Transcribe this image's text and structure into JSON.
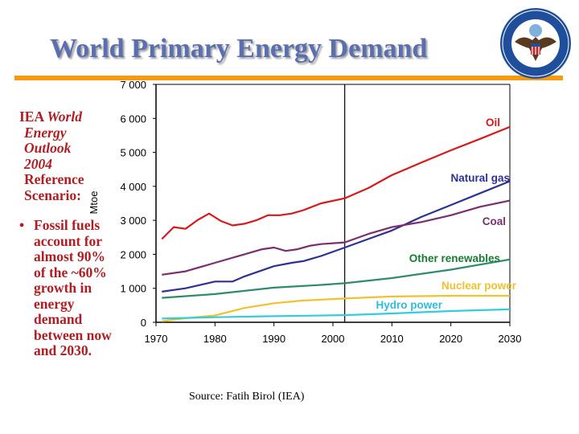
{
  "slide": {
    "title": "World Primary Energy Demand",
    "sidebar": {
      "heading_lines": [
        {
          "plain": "IEA ",
          "italic": "World"
        },
        {
          "italic": "Energy"
        },
        {
          "italic": "Outlook"
        },
        {
          "italic": "2004"
        },
        {
          "plain": "Reference"
        },
        {
          "plain": "Scenario:"
        }
      ],
      "bullet": "Fossil fuels account for almost 90% of the ~60% growth in energy demand between now and 2030."
    },
    "source": "Source:  Fatih Birol (IEA)",
    "seal": {
      "text_top": "U.S. DEPARTMENT OF STATE",
      "text_bottom": "UNITED STATES OF AMERICA"
    },
    "colors": {
      "title": "#5a6fb0",
      "accent_rule": "#f39c12",
      "sidebar_text": "#b01e23"
    }
  },
  "chart_data": {
    "type": "line",
    "title": "",
    "xlabel": "",
    "ylabel": "Mtoe",
    "xlim": [
      1970,
      2030
    ],
    "ylim": [
      0,
      7000
    ],
    "xticks": [
      1970,
      1980,
      1990,
      2000,
      2010,
      2020,
      2030
    ],
    "yticks": [
      "0",
      "1 000",
      "2 000",
      "3 000",
      "4 000",
      "5 000",
      "6 000",
      "7 000"
    ],
    "ytick_values": [
      0,
      1000,
      2000,
      3000,
      4000,
      5000,
      6000,
      7000
    ],
    "projection_start_year": 2002,
    "grid": false,
    "legend": "inline labels at right",
    "series": [
      {
        "name": "Oil",
        "color": "#d7191c",
        "x": [
          1971,
          1973,
          1975,
          1977,
          1979,
          1981,
          1983,
          1985,
          1987,
          1989,
          1991,
          1993,
          1995,
          1998,
          2002,
          2006,
          2010,
          2015,
          2020,
          2025,
          2030
        ],
        "y": [
          2450,
          2800,
          2750,
          3000,
          3200,
          2980,
          2850,
          2900,
          3000,
          3150,
          3150,
          3200,
          3300,
          3500,
          3650,
          3950,
          4330,
          4700,
          5060,
          5400,
          5750
        ]
      },
      {
        "name": "Natural gas",
        "color": "#2e3192",
        "x": [
          1971,
          1975,
          1980,
          1983,
          1985,
          1990,
          1993,
          1995,
          1998,
          2002,
          2006,
          2010,
          2015,
          2020,
          2025,
          2030
        ],
        "y": [
          900,
          1000,
          1200,
          1200,
          1350,
          1650,
          1750,
          1800,
          1950,
          2200,
          2450,
          2700,
          3100,
          3450,
          3800,
          4150
        ]
      },
      {
        "name": "Coal",
        "color": "#7b2d6e",
        "x": [
          1971,
          1975,
          1980,
          1985,
          1988,
          1990,
          1992,
          1994,
          1996,
          1998,
          2002,
          2006,
          2010,
          2015,
          2020,
          2025,
          2030
        ],
        "y": [
          1400,
          1500,
          1750,
          2000,
          2150,
          2200,
          2100,
          2150,
          2250,
          2300,
          2350,
          2600,
          2800,
          2950,
          3150,
          3400,
          3580
        ]
      },
      {
        "name": "Other renewables",
        "color": "#2e8b6b",
        "x": [
          1971,
          1980,
          1990,
          1998,
          2002,
          2010,
          2020,
          2030
        ],
        "y": [
          720,
          830,
          1020,
          1100,
          1150,
          1300,
          1550,
          1850
        ]
      },
      {
        "name": "Nuclear power",
        "color": "#f2c12e",
        "x": [
          1971,
          1975,
          1980,
          1985,
          1990,
          1995,
          2002,
          2010,
          2020,
          2030
        ],
        "y": [
          30,
          120,
          200,
          420,
          560,
          640,
          700,
          760,
          780,
          780
        ]
      },
      {
        "name": "Hydro power",
        "color": "#33ccdd",
        "x": [
          1971,
          1980,
          1990,
          2002,
          2010,
          2020,
          2030
        ],
        "y": [
          110,
          150,
          180,
          210,
          260,
          330,
          380
        ]
      }
    ]
  }
}
